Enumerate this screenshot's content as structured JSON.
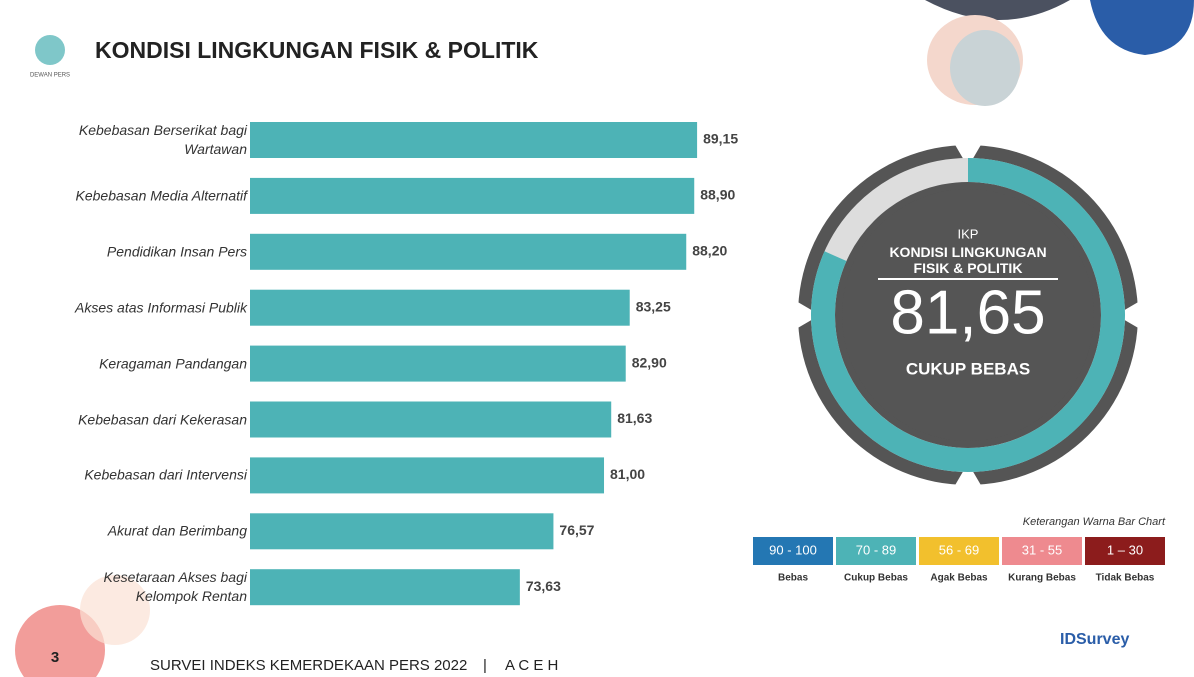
{
  "header": {
    "title": "KONDISI LINGKUNGAN FISIK & POLITIK",
    "logo_text": "DEWAN PERS"
  },
  "chart_data": [
    {
      "type": "bar",
      "orientation": "horizontal",
      "color": "#4db3b6",
      "categories": [
        "Kebebasan Berserikat bagi Wartawan",
        "Kebebasan Media Alternatif",
        "Pendidikan Insan Pers",
        "Akses atas Informasi Publik",
        "Keragaman Pandangan",
        "Kebebasan dari Kekerasan",
        "Kebebasan dari Intervensi",
        "Akurat dan Berimbang",
        "Kesetaraan Akses bagi Kelompok Rentan"
      ],
      "values": [
        89.15,
        88.9,
        88.2,
        83.25,
        82.9,
        81.63,
        81.0,
        76.57,
        73.63
      ],
      "value_labels": [
        "89,15",
        "88,90",
        "88,20",
        "83,25",
        "82,90",
        "81,63",
        "81,00",
        "76,57",
        "73,63"
      ],
      "xlim": [
        50,
        100
      ]
    },
    {
      "type": "gauge",
      "title": "IKP",
      "subtitle": "KONDISI LINGKUNGAN FISIK & POLITIK",
      "value": 81.65,
      "value_label": "81,65",
      "status": "CUKUP BEBAS",
      "color": "#4db3b6",
      "ylim": [
        0,
        100
      ]
    }
  ],
  "legend": {
    "title": "Keterangan Warna Bar Chart",
    "items": [
      {
        "range": "90 - 100",
        "label": "Bebas",
        "color": "#2477b3"
      },
      {
        "range": "70 - 89",
        "label": "Cukup Bebas",
        "color": "#4db3b6"
      },
      {
        "range": "56 - 69",
        "label": "Agak Bebas",
        "color": "#f2c02d"
      },
      {
        "range": "31 - 55",
        "label": "Kurang Bebas",
        "color": "#ee8a8f"
      },
      {
        "range": "1 – 30",
        "label": "Tidak Bebas",
        "color": "#8c1c1c"
      }
    ]
  },
  "footer": {
    "page": "3",
    "text": "SURVEI INDEKS KEMERDEKAAN PERS 2022",
    "region": "A C E H",
    "brand": "IDSurvey"
  }
}
